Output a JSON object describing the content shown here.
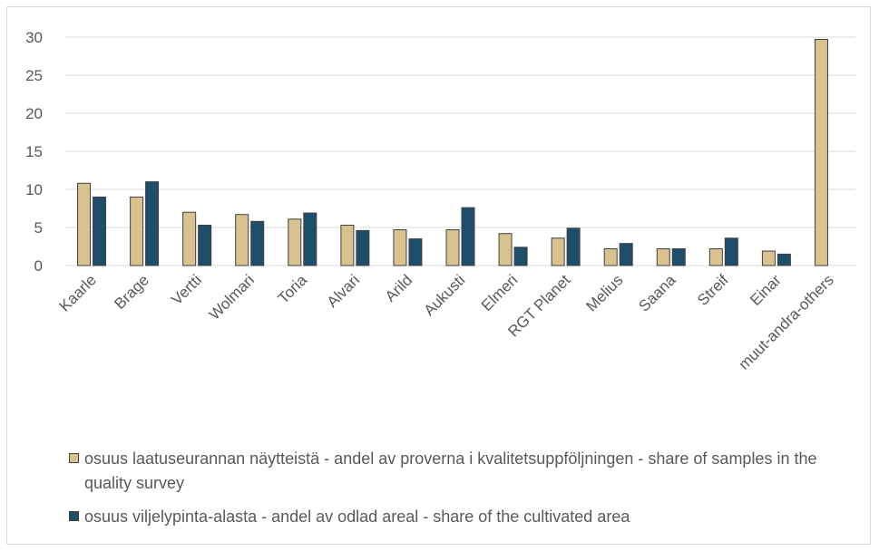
{
  "chart_data": {
    "type": "bar",
    "categories": [
      "Kaarle",
      "Brage",
      "Vertti",
      "Wolmari",
      "Toria",
      "Alvari",
      "Arild",
      "Aukusti",
      "Elmeri",
      "RGT Planet",
      "Melius",
      "Saana",
      "Streif",
      "Einar",
      "muut-andra-others"
    ],
    "series": [
      {
        "name": "osuus laatuseurannan näytteistä - andel av proverna i kvalitetsuppföljningen - share of samples in the quality survey",
        "color": "#d8c28f",
        "values": [
          10.8,
          9.0,
          7.0,
          6.7,
          6.1,
          5.3,
          4.7,
          4.7,
          4.2,
          3.6,
          2.2,
          2.2,
          2.2,
          1.9,
          29.7
        ]
      },
      {
        "name": "osuus viljelypinta-alasta - andel av odlad areal - share of the cultivated area",
        "color": "#1f4e6b",
        "values": [
          9.0,
          11.0,
          5.3,
          5.8,
          6.9,
          4.6,
          3.5,
          7.6,
          2.4,
          4.9,
          2.9,
          2.2,
          3.6,
          1.5,
          null
        ]
      }
    ],
    "ylim": [
      0,
      30
    ],
    "yticks": [
      "0",
      "5",
      "10",
      "15",
      "20",
      "25",
      "30"
    ],
    "grid": true,
    "legend_position": "bottom",
    "title": "",
    "xlabel": "",
    "ylabel": ""
  }
}
